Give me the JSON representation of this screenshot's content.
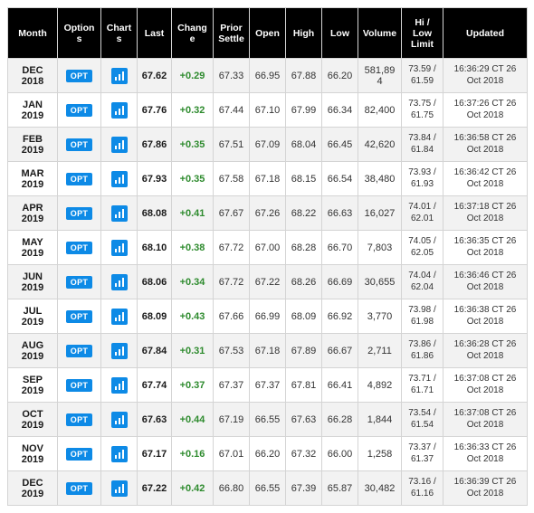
{
  "table": {
    "header_bg": "#000000",
    "header_fg": "#ffffff",
    "row_alt_bg": "#f2f2f2",
    "row_bg": "#ffffff",
    "border_color": "#d4d4d4",
    "badge_bg": "#0d8ae6",
    "badge_fg": "#ffffff",
    "change_pos_color": "#2e8b2e",
    "columns": [
      {
        "key": "month",
        "label": "Month"
      },
      {
        "key": "options",
        "label": "Options"
      },
      {
        "key": "charts",
        "label": "Charts"
      },
      {
        "key": "last",
        "label": "Last"
      },
      {
        "key": "change",
        "label": "Change"
      },
      {
        "key": "prior",
        "label": "Prior Settle"
      },
      {
        "key": "open",
        "label": "Open"
      },
      {
        "key": "high",
        "label": "High"
      },
      {
        "key": "low",
        "label": "Low"
      },
      {
        "key": "volume",
        "label": "Volume"
      },
      {
        "key": "hilo",
        "label": "Hi / Low Limit"
      },
      {
        "key": "updated",
        "label": "Updated"
      }
    ],
    "options_badge_text": "OPT",
    "rows": [
      {
        "month": "DEC 2018",
        "last": "67.62",
        "change": "+0.29",
        "prior": "67.33",
        "open": "66.95",
        "high": "67.88",
        "low": "66.20",
        "volume": "581,894",
        "hi": "73.59",
        "lo": "61.59",
        "upd_time": "16:36:29 CT",
        "upd_date": "26 Oct 2018"
      },
      {
        "month": "JAN 2019",
        "last": "67.76",
        "change": "+0.32",
        "prior": "67.44",
        "open": "67.10",
        "high": "67.99",
        "low": "66.34",
        "volume": "82,400",
        "hi": "73.75",
        "lo": "61.75",
        "upd_time": "16:37:26 CT",
        "upd_date": "26 Oct 2018"
      },
      {
        "month": "FEB 2019",
        "last": "67.86",
        "change": "+0.35",
        "prior": "67.51",
        "open": "67.09",
        "high": "68.04",
        "low": "66.45",
        "volume": "42,620",
        "hi": "73.84",
        "lo": "61.84",
        "upd_time": "16:36:58 CT",
        "upd_date": "26 Oct 2018"
      },
      {
        "month": "MAR 2019",
        "last": "67.93",
        "change": "+0.35",
        "prior": "67.58",
        "open": "67.18",
        "high": "68.15",
        "low": "66.54",
        "volume": "38,480",
        "hi": "73.93",
        "lo": "61.93",
        "upd_time": "16:36:42 CT",
        "upd_date": "26 Oct 2018"
      },
      {
        "month": "APR 2019",
        "last": "68.08",
        "change": "+0.41",
        "prior": "67.67",
        "open": "67.26",
        "high": "68.22",
        "low": "66.63",
        "volume": "16,027",
        "hi": "74.01",
        "lo": "62.01",
        "upd_time": "16:37:18 CT",
        "upd_date": "26 Oct 2018"
      },
      {
        "month": "MAY 2019",
        "last": "68.10",
        "change": "+0.38",
        "prior": "67.72",
        "open": "67.00",
        "high": "68.28",
        "low": "66.70",
        "volume": "7,803",
        "hi": "74.05",
        "lo": "62.05",
        "upd_time": "16:36:35 CT",
        "upd_date": "26 Oct 2018"
      },
      {
        "month": "JUN 2019",
        "last": "68.06",
        "change": "+0.34",
        "prior": "67.72",
        "open": "67.22",
        "high": "68.26",
        "low": "66.69",
        "volume": "30,655",
        "hi": "74.04",
        "lo": "62.04",
        "upd_time": "16:36:46 CT",
        "upd_date": "26 Oct 2018"
      },
      {
        "month": "JUL 2019",
        "last": "68.09",
        "change": "+0.43",
        "prior": "67.66",
        "open": "66.99",
        "high": "68.09",
        "low": "66.92",
        "volume": "3,770",
        "hi": "73.98",
        "lo": "61.98",
        "upd_time": "16:36:38 CT",
        "upd_date": "26 Oct 2018"
      },
      {
        "month": "AUG 2019",
        "last": "67.84",
        "change": "+0.31",
        "prior": "67.53",
        "open": "67.18",
        "high": "67.89",
        "low": "66.67",
        "volume": "2,711",
        "hi": "73.86",
        "lo": "61.86",
        "upd_time": "16:36:28 CT",
        "upd_date": "26 Oct 2018"
      },
      {
        "month": "SEP 2019",
        "last": "67.74",
        "change": "+0.37",
        "prior": "67.37",
        "open": "67.37",
        "high": "67.81",
        "low": "66.41",
        "volume": "4,892",
        "hi": "73.71",
        "lo": "61.71",
        "upd_time": "16:37:08 CT",
        "upd_date": "26 Oct 2018"
      },
      {
        "month": "OCT 2019",
        "last": "67.63",
        "change": "+0.44",
        "prior": "67.19",
        "open": "66.55",
        "high": "67.63",
        "low": "66.28",
        "volume": "1,844",
        "hi": "73.54",
        "lo": "61.54",
        "upd_time": "16:37:08 CT",
        "upd_date": "26 Oct 2018"
      },
      {
        "month": "NOV 2019",
        "last": "67.17",
        "change": "+0.16",
        "prior": "67.01",
        "open": "66.20",
        "high": "67.32",
        "low": "66.00",
        "volume": "1,258",
        "hi": "73.37",
        "lo": "61.37",
        "upd_time": "16:36:33 CT",
        "upd_date": "26 Oct 2018"
      },
      {
        "month": "DEC 2019",
        "last": "67.22",
        "change": "+0.42",
        "prior": "66.80",
        "open": "66.55",
        "high": "67.39",
        "low": "65.87",
        "volume": "30,482",
        "hi": "73.16",
        "lo": "61.16",
        "upd_time": "16:36:39 CT",
        "upd_date": "26 Oct 2018"
      }
    ]
  }
}
